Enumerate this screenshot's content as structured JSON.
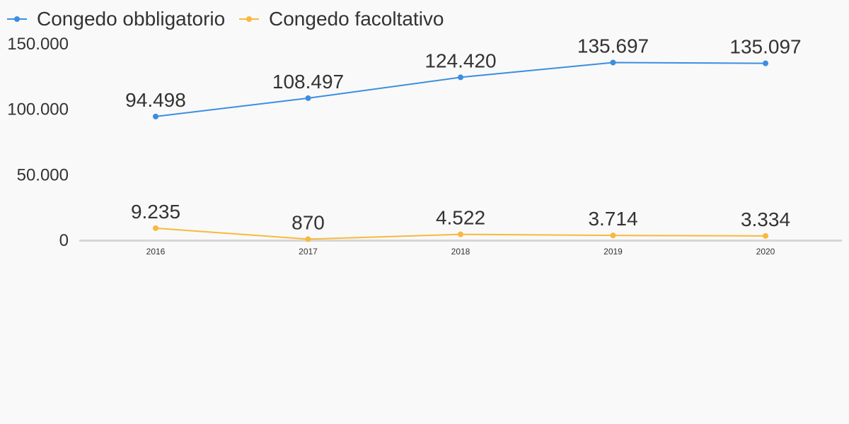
{
  "chart_data": {
    "type": "line",
    "title": "",
    "xlabel": "",
    "ylabel": "",
    "categories": [
      "2016",
      "2017",
      "2018",
      "2019",
      "2020"
    ],
    "ylim": [
      0,
      150000
    ],
    "yticks": [
      {
        "value": 0,
        "label": "0"
      },
      {
        "value": 50000,
        "label": "50.000"
      },
      {
        "value": 100000,
        "label": "100.000"
      },
      {
        "value": 150000,
        "label": "150.000"
      }
    ],
    "grid": false,
    "legend_position": "top-left",
    "series": [
      {
        "name": "Congedo obbligatorio",
        "color": "#3b8ee0",
        "values": [
          94498,
          108497,
          124420,
          135697,
          135097
        ],
        "labels": [
          "94.498",
          "108.497",
          "124.420",
          "135.697",
          "135.097"
        ]
      },
      {
        "name": "Congedo facoltativo",
        "color": "#f8b93c",
        "values": [
          9235,
          870,
          4522,
          3714,
          3334
        ],
        "labels": [
          "9.235",
          "870",
          "4.522",
          "3.714",
          "3.334"
        ]
      }
    ]
  }
}
